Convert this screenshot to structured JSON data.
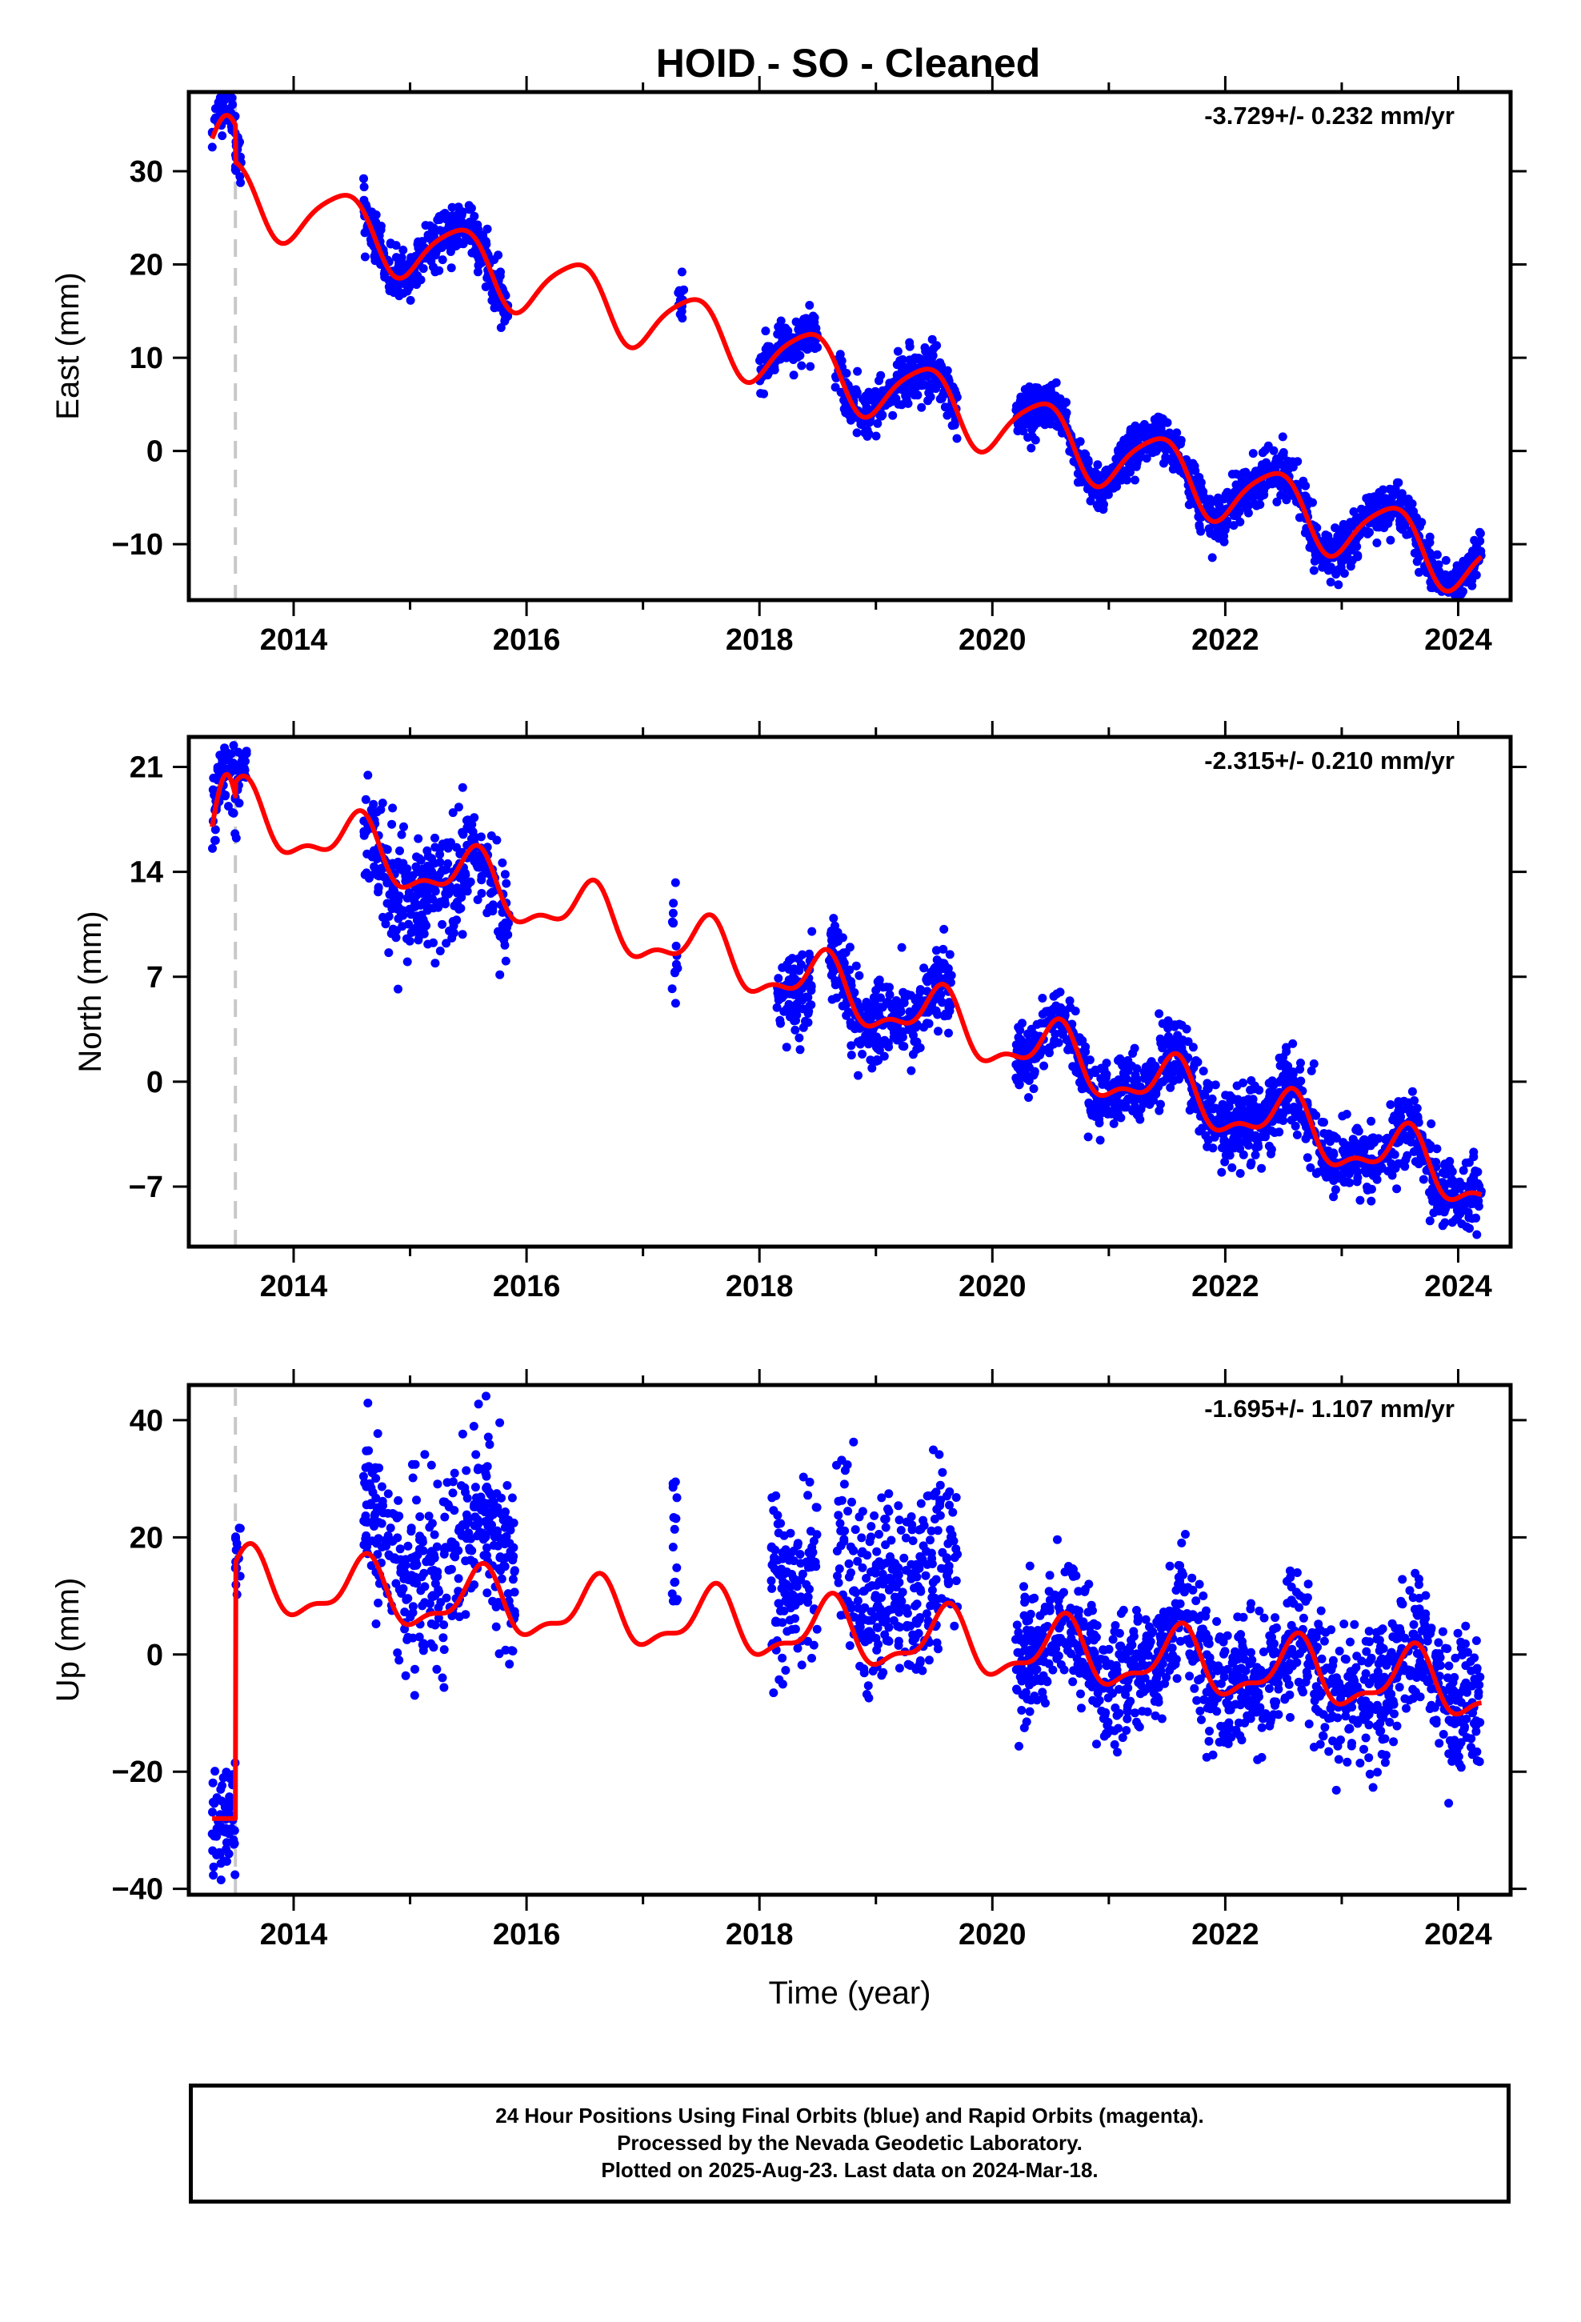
{
  "title": "HOID  - SO - Cleaned",
  "xlabel": "Time (year)",
  "footer": {
    "line1": "24 Hour Positions Using Final Orbits (blue) and Rapid Orbits (magenta).",
    "line2": "Processed by the Nevada Geodetic Laboratory.",
    "line3": "Plotted on 2025-Aug-23. Last data on 2024-Mar-18."
  },
  "colors": {
    "data": "#0000ff",
    "model": "#ff0000",
    "event": "#c8c8c8",
    "axis": "#000000"
  },
  "chart_data": [
    {
      "type": "scatter",
      "name": "east",
      "ylabel": "East (mm)",
      "rate_text": "-3.729+/- 0.232 mm/yr",
      "xlim": [
        2013.1,
        2024.45
      ],
      "ylim": [
        -16,
        38.5
      ],
      "xticks": [
        2014,
        2016,
        2018,
        2020,
        2022,
        2024
      ],
      "yticks": [
        -10,
        0,
        10,
        20,
        30
      ],
      "event_x": 2013.5,
      "model": {
        "rate": -3.729,
        "offset_at_2019": 7.2,
        "annual_amp": 3.5,
        "annual_peak": 0.42,
        "semiannual_amp": 0.6,
        "semiannual_peak": 0.1,
        "step_at": 2013.5,
        "early_values": [
          33.5,
          36.0
        ]
      },
      "observation_segments": [
        {
          "start": 2013.3,
          "end": 2013.55,
          "mean_offset": 1.0,
          "scatter": 1.2
        },
        {
          "start": 2014.6,
          "end": 2015.85,
          "mean_offset": 0.0,
          "scatter": 1.3
        },
        {
          "start": 2017.3,
          "end": 2017.35,
          "mean_offset": 0.5,
          "scatter": 1.5
        },
        {
          "start": 2018.0,
          "end": 2018.5,
          "mean_offset": 0.0,
          "scatter": 1.3
        },
        {
          "start": 2018.65,
          "end": 2019.7,
          "mean_offset": 0.0,
          "scatter": 1.4
        },
        {
          "start": 2020.2,
          "end": 2024.2,
          "mean_offset": 0.0,
          "scatter": 1.3
        }
      ]
    },
    {
      "type": "scatter",
      "name": "north",
      "ylabel": "North (mm)",
      "rate_text": "-2.315+/- 0.210 mm/yr",
      "xlim": [
        2013.1,
        2024.45
      ],
      "ylim": [
        -11,
        23
      ],
      "xticks": [
        2014,
        2016,
        2018,
        2020,
        2022,
        2024
      ],
      "yticks": [
        -7,
        0,
        7,
        14,
        21
      ],
      "event_x": 2013.5,
      "model": {
        "rate": -2.315,
        "offset_at_2019": 5.3,
        "annual_amp": 1.8,
        "annual_peak": 0.55,
        "semiannual_amp": 0.8,
        "semiannual_peak": 0.1,
        "step_at": 2013.5,
        "early_values": [
          17.0,
          20.5
        ]
      },
      "observation_segments": [
        {
          "start": 2013.3,
          "end": 2013.6,
          "mean_offset": 0.5,
          "scatter": 1.3
        },
        {
          "start": 2014.6,
          "end": 2015.85,
          "mean_offset": -0.5,
          "scatter": 1.9
        },
        {
          "start": 2017.25,
          "end": 2017.3,
          "mean_offset": 0.0,
          "scatter": 1.8
        },
        {
          "start": 2018.15,
          "end": 2018.45,
          "mean_offset": -0.5,
          "scatter": 1.3
        },
        {
          "start": 2018.6,
          "end": 2019.65,
          "mean_offset": 0.0,
          "scatter": 1.4
        },
        {
          "start": 2020.2,
          "end": 2024.2,
          "mean_offset": 0.0,
          "scatter": 1.2
        }
      ]
    },
    {
      "type": "scatter",
      "name": "up",
      "ylabel": "Up (mm)",
      "rate_text": "-1.695+/- 1.107 mm/yr",
      "xlim": [
        2013.1,
        2024.45
      ],
      "ylim": [
        -41,
        46
      ],
      "xticks": [
        2014,
        2016,
        2018,
        2020,
        2022,
        2024
      ],
      "yticks": [
        -40,
        -20,
        0,
        20,
        40
      ],
      "event_x": 2013.5,
      "model": {
        "rate": -1.695,
        "offset_at_2019": 3.0,
        "annual_amp": 5.0,
        "annual_peak": 0.6,
        "semiannual_amp": 2.0,
        "semiannual_peak": 0.15,
        "step_at": 2013.5,
        "early_values": [
          -28.0,
          -28.0
        ]
      },
      "observation_segments": [
        {
          "start": 2013.3,
          "end": 2013.55,
          "mean_offset": -1.0,
          "scatter": 4.5
        },
        {
          "start": 2014.6,
          "end": 2015.9,
          "mean_offset": 8.0,
          "scatter": 7.5
        },
        {
          "start": 2017.25,
          "end": 2017.3,
          "mean_offset": 15.0,
          "scatter": 8.0
        },
        {
          "start": 2018.1,
          "end": 2018.5,
          "mean_offset": 10.0,
          "scatter": 7.0
        },
        {
          "start": 2018.65,
          "end": 2019.7,
          "mean_offset": 10.0,
          "scatter": 8.0
        },
        {
          "start": 2020.2,
          "end": 2024.2,
          "mean_offset": 0.0,
          "scatter": 5.5
        }
      ]
    }
  ]
}
